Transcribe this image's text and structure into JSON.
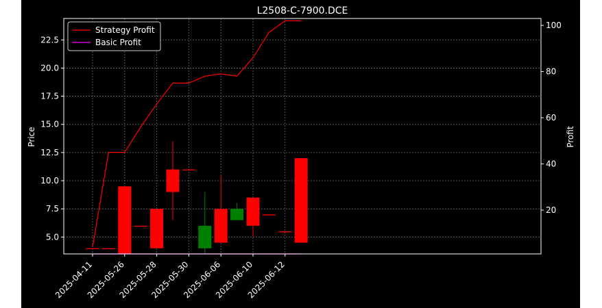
{
  "chart_data": {
    "type": "candlestick+line",
    "title": "L2508-C-7900.DCE",
    "ylabel_left": "Price",
    "ylabel_right": "Profit",
    "ylim_left": [
      3.5,
      24.4
    ],
    "ylim_right": [
      1,
      103
    ],
    "yticks_left": [
      "5.0",
      "7.5",
      "10.0",
      "12.5",
      "15.0",
      "17.5",
      "20.0",
      "22.5"
    ],
    "yticks_right": [
      "20",
      "40",
      "60",
      "80",
      "100"
    ],
    "xtick_labels": [
      "2025-04-11",
      "2025-05-26",
      "2025-05-28",
      "2025-05-30",
      "2025-06-06",
      "2025-06-10",
      "2025-06-12"
    ],
    "grid": true,
    "legend_position": "top-left",
    "colors": {
      "up": "#ff0000",
      "down": "#008000",
      "strategy": "#ff0000",
      "basic": "#ff00ff",
      "background": "#000000",
      "text": "#ffffff"
    },
    "candles": [
      {
        "open": 4.0,
        "close": 4.0,
        "high": 4.0,
        "low": 4.0
      },
      {
        "open": 4.0,
        "close": 4.0,
        "high": 4.0,
        "low": 4.0
      },
      {
        "open": 3.5,
        "close": 9.5,
        "high": 9.5,
        "low": 3.5
      },
      {
        "open": 6.0,
        "close": 6.0,
        "high": 6.0,
        "low": 6.0
      },
      {
        "open": 4.0,
        "close": 7.5,
        "high": 7.5,
        "low": 4.0
      },
      {
        "open": 9.0,
        "close": 11.0,
        "high": 13.5,
        "low": 6.5
      },
      {
        "open": 11.0,
        "close": 11.0,
        "high": 11.0,
        "low": 11.0
      },
      {
        "open": 6.0,
        "close": 4.0,
        "high": 9.0,
        "low": 3.5
      },
      {
        "open": 4.5,
        "close": 7.5,
        "high": 10.5,
        "low": 4.5
      },
      {
        "open": 7.5,
        "close": 6.5,
        "high": 8.0,
        "low": 6.5
      },
      {
        "open": 6.0,
        "close": 8.5,
        "high": 8.5,
        "low": 5.0
      },
      {
        "open": 7.0,
        "close": 7.0,
        "high": 7.0,
        "low": 7.0
      },
      {
        "open": 5.5,
        "close": 5.5,
        "high": 5.5,
        "low": 5.5
      },
      {
        "open": 4.5,
        "close": 12.0,
        "high": 12.0,
        "low": 4.5
      }
    ],
    "series": [
      {
        "name": "Strategy Profit",
        "values": [
          4,
          45,
          45,
          56,
          66,
          75,
          75,
          78,
          79,
          78,
          86,
          97,
          102,
          102
        ]
      },
      {
        "name": "Basic Profit",
        "values": [
          1,
          1,
          1,
          1,
          1,
          1,
          1,
          1,
          1,
          1,
          1,
          1,
          1,
          1
        ]
      }
    ]
  }
}
